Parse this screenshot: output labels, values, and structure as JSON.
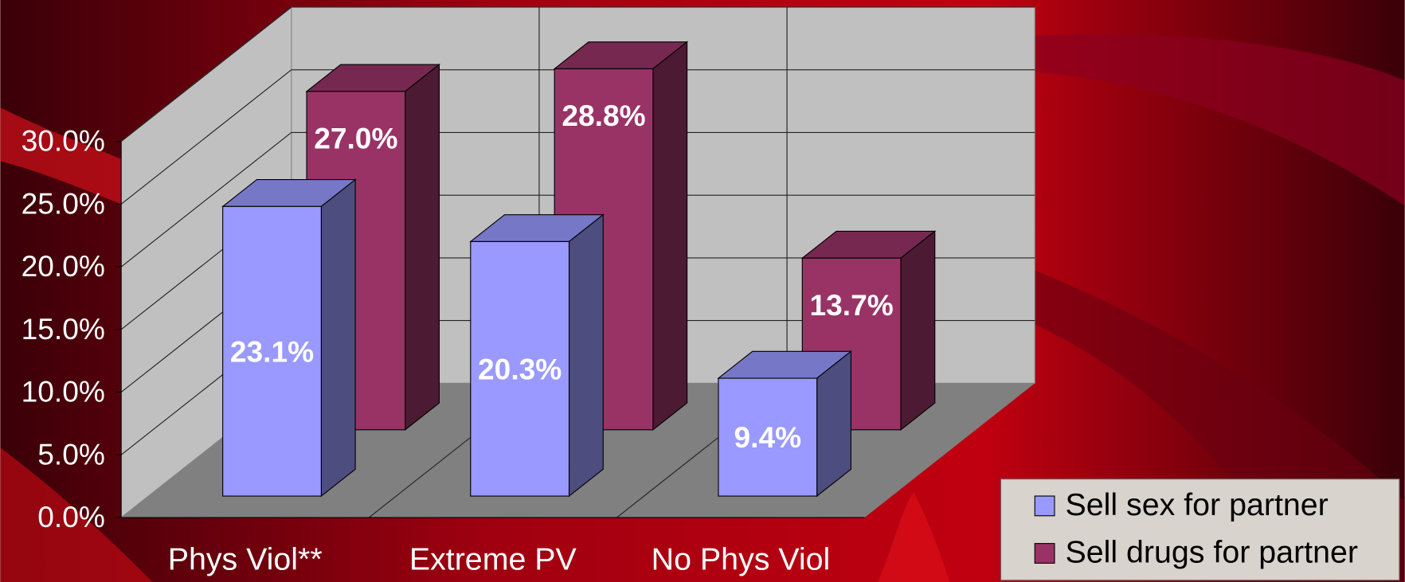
{
  "chart_data": {
    "type": "bar3d",
    "categories": [
      "Phys Viol**",
      "Extreme PV",
      "No Phys Viol"
    ],
    "series": [
      {
        "name": "Sell sex for partner",
        "color": "#9999ff",
        "values": [
          23.1,
          20.3,
          9.4
        ],
        "value_labels": [
          "23.1%",
          "20.3%",
          "9.4%"
        ]
      },
      {
        "name": "Sell drugs for partner",
        "color": "#993366",
        "values": [
          27.0,
          28.8,
          13.7
        ],
        "value_labels": [
          "27.0%",
          "28.8%",
          "13.7%"
        ]
      }
    ],
    "ylim": [
      0,
      30
    ],
    "yticks": [
      {
        "value": 0,
        "label": "0.0%"
      },
      {
        "value": 5,
        "label": "5.0%"
      },
      {
        "value": 10,
        "label": "10.0%"
      },
      {
        "value": 15,
        "label": "15.0%"
      },
      {
        "value": 20,
        "label": "20.0%"
      },
      {
        "value": 25,
        "label": "25.0%"
      },
      {
        "value": 30,
        "label": "30.0%"
      }
    ],
    "grid": true,
    "legend": "bottom-right"
  }
}
